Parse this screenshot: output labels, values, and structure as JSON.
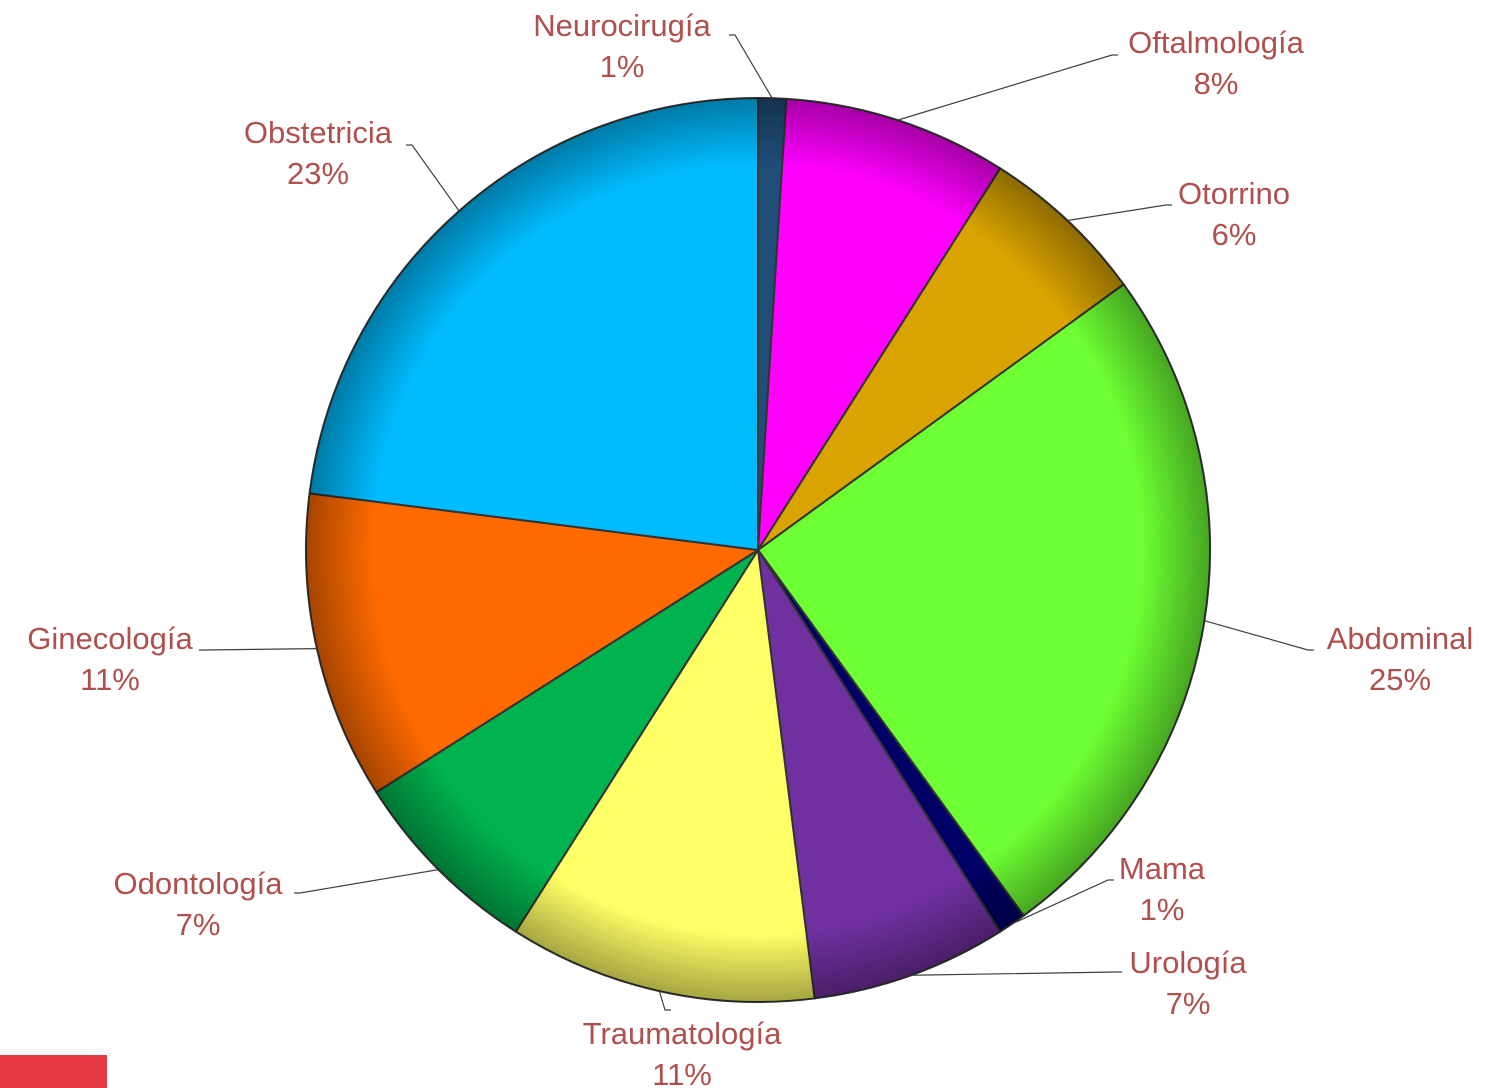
{
  "chart_data": {
    "type": "pie",
    "categories": [
      "Neurocirugía",
      "Oftalmología",
      "Otorrino",
      "Abdominal",
      "Mama",
      "Urología",
      "Traumatología",
      "Odontología",
      "Ginecología",
      "Obstetricia"
    ],
    "values": [
      1,
      8,
      6,
      25,
      1,
      7,
      11,
      7,
      11,
      23
    ],
    "value_labels": [
      "1%",
      "8%",
      "6%",
      "25%",
      "1%",
      "7%",
      "11%",
      "7%",
      "11%",
      "23%"
    ],
    "colors": [
      "#1f4e79",
      "#ff00ff",
      "#d9a400",
      "#6dff33",
      "#000066",
      "#7030a0",
      "#ffff66",
      "#00b34f",
      "#ff6a00",
      "#00bcff"
    ]
  }
}
